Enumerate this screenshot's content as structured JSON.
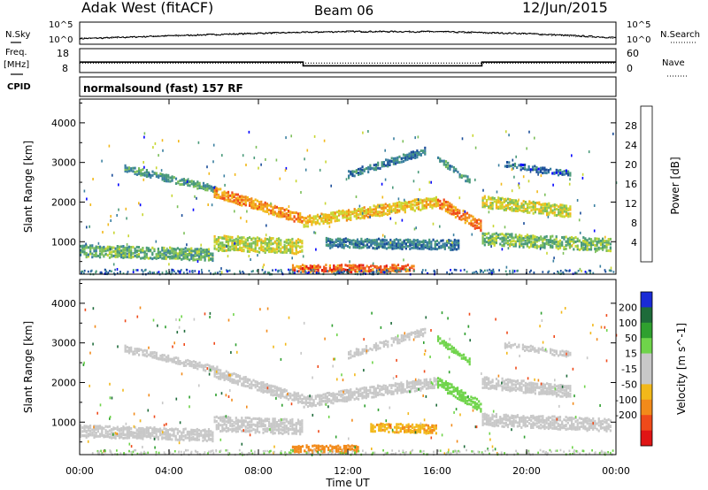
{
  "header": {
    "station": "Adak West (fitACF)",
    "beam": "Beam 06",
    "date": "12/Jun/2015"
  },
  "side_labels": {
    "nsky": "N.Sky",
    "nsearch": "N.Search",
    "freq_top": "Freq.",
    "freq_unit": "[MHz]",
    "nave": "Nave",
    "cpid": "CPID"
  },
  "cpid_text": "normalsound (fast) 157 RF",
  "colors": {
    "frame": "#000000",
    "power_scale": [
      "#0000ff",
      "#1a4d99",
      "#3a7fa0",
      "#4a9a7a",
      "#7cbf5a",
      "#c8d632",
      "#f2b81a",
      "#f28a1a",
      "#ef4a1a",
      "#e01414"
    ],
    "velocity_scale": [
      "#1a2bd6",
      "#1e6b3a",
      "#2fa02f",
      "#6fd44a",
      "#c8c8c8",
      "#c8c8c8",
      "#f2b81a",
      "#f28a1a",
      "#ef4a1a",
      "#e01414"
    ]
  },
  "chart_data": [
    {
      "type": "line",
      "title": "N.Sky / N.Search",
      "y_left_ticks": [
        "10^5",
        "10^0"
      ],
      "y_right_ticks": [
        "10^5",
        "10^0"
      ],
      "x": [
        "00:00",
        "04:00",
        "08:00",
        "12:00",
        "16:00",
        "20:00",
        "00:00"
      ],
      "series": [
        {
          "name": "N.Sky",
          "values": [
            10,
            60,
            300,
            900,
            800,
            250,
            20
          ]
        },
        {
          "name": "N.Search",
          "values": [
            12,
            55,
            250,
            800,
            700,
            200,
            15
          ]
        }
      ]
    },
    {
      "type": "line",
      "title": "Freq. [MHz] / Nave",
      "y_left_ticks": [
        "18",
        "8"
      ],
      "y_right_ticks": [
        "60",
        "0"
      ],
      "series": [
        {
          "name": "Freq.",
          "x_hours": [
            0,
            10.0,
            10.0,
            18.0,
            18.0,
            24
          ],
          "values": [
            12.2,
            12.2,
            10.2,
            10.2,
            12.2,
            12.2
          ]
        },
        {
          "name": "Nave",
          "x_hours": [
            0,
            24
          ],
          "values": [
            22,
            22
          ]
        }
      ]
    },
    {
      "type": "heatmap",
      "title": "Power",
      "ylabel": "Slant Range [km]",
      "y_ticks": [
        "1000",
        "2000",
        "3000",
        "4000"
      ],
      "ylim": [
        180,
        4600
      ],
      "xlim": [
        0,
        24
      ],
      "colorbar": {
        "label": "Power [dB]",
        "ticks": [
          "4",
          "8",
          "12",
          "16",
          "20",
          "24",
          "28"
        ]
      },
      "bands": [
        {
          "x": [
            0.0,
            6.0
          ],
          "y0": 750,
          "y1": 650,
          "w": 300,
          "v": 14
        },
        {
          "x": [
            2.0,
            6.2
          ],
          "y0": 2850,
          "y1": 2300,
          "w": 170,
          "v": 12
        },
        {
          "x": [
            6.0,
            10.0
          ],
          "y0": 2250,
          "y1": 1550,
          "w": 250,
          "v": 24
        },
        {
          "x": [
            6.0,
            10.0
          ],
          "y0": 950,
          "y1": 850,
          "w": 380,
          "v": 18
        },
        {
          "x": [
            9.5,
            15.0
          ],
          "y0": 300,
          "y1": 300,
          "w": 180,
          "v": 26
        },
        {
          "x": [
            10.0,
            16.0
          ],
          "y0": 1500,
          "y1": 2000,
          "w": 280,
          "v": 21
        },
        {
          "x": [
            11.0,
            17.0
          ],
          "y0": 950,
          "y1": 900,
          "w": 250,
          "v": 10
        },
        {
          "x": [
            12.0,
            15.5
          ],
          "y0": 2700,
          "y1": 3300,
          "w": 180,
          "v": 9
        },
        {
          "x": [
            16.0,
            18.0
          ],
          "y0": 2000,
          "y1": 1350,
          "w": 280,
          "v": 25
        },
        {
          "x": [
            16.0,
            17.5
          ],
          "y0": 3100,
          "y1": 2500,
          "w": 150,
          "v": 11
        },
        {
          "x": [
            18.0,
            22.0
          ],
          "y0": 2000,
          "y1": 1750,
          "w": 300,
          "v": 19
        },
        {
          "x": [
            18.0,
            23.8
          ],
          "y0": 1050,
          "y1": 900,
          "w": 320,
          "v": 15
        },
        {
          "x": [
            19.0,
            22.0
          ],
          "y0": 2950,
          "y1": 2700,
          "w": 150,
          "v": 8
        }
      ]
    },
    {
      "type": "heatmap",
      "title": "Velocity",
      "ylabel": "Slant Range [km]",
      "y_ticks": [
        "1000",
        "2000",
        "3000",
        "4000"
      ],
      "ylim": [
        180,
        4600
      ],
      "xlim": [
        0,
        24
      ],
      "colorbar": {
        "label": "Velocity [m s^-1]",
        "ticks": [
          "200",
          "100",
          "50",
          "15",
          "-15",
          "-50",
          "-100",
          "-200"
        ]
      },
      "bands": [
        {
          "x": [
            0.0,
            6.0
          ],
          "y0": 750,
          "y1": 650,
          "w": 300,
          "v": 0
        },
        {
          "x": [
            2.0,
            6.2
          ],
          "y0": 2850,
          "y1": 2300,
          "w": 170,
          "v": 0
        },
        {
          "x": [
            6.0,
            10.0
          ],
          "y0": 2250,
          "y1": 1550,
          "w": 250,
          "v": 0
        },
        {
          "x": [
            6.0,
            10.0
          ],
          "y0": 950,
          "y1": 850,
          "w": 380,
          "v": 0
        },
        {
          "x": [
            9.5,
            12.5
          ],
          "y0": 300,
          "y1": 300,
          "w": 180,
          "v": -80
        },
        {
          "x": [
            10.0,
            16.0
          ],
          "y0": 1500,
          "y1": 2000,
          "w": 280,
          "v": 0
        },
        {
          "x": [
            13.0,
            16.0
          ],
          "y0": 850,
          "y1": 800,
          "w": 220,
          "v": -45
        },
        {
          "x": [
            12.0,
            15.5
          ],
          "y0": 2700,
          "y1": 3300,
          "w": 180,
          "v": 0
        },
        {
          "x": [
            16.0,
            18.0
          ],
          "y0": 2000,
          "y1": 1350,
          "w": 280,
          "v": 25
        },
        {
          "x": [
            16.0,
            17.5
          ],
          "y0": 3100,
          "y1": 2500,
          "w": 150,
          "v": 30
        },
        {
          "x": [
            18.0,
            22.0
          ],
          "y0": 2000,
          "y1": 1750,
          "w": 300,
          "v": 0
        },
        {
          "x": [
            18.0,
            23.8
          ],
          "y0": 1050,
          "y1": 900,
          "w": 320,
          "v": 0
        },
        {
          "x": [
            19.0,
            22.0
          ],
          "y0": 2950,
          "y1": 2700,
          "w": 150,
          "v": 0
        }
      ]
    }
  ],
  "x_axis": {
    "label": "Time UT",
    "ticks": [
      "00:00",
      "04:00",
      "08:00",
      "12:00",
      "16:00",
      "20:00",
      "00:00"
    ]
  }
}
